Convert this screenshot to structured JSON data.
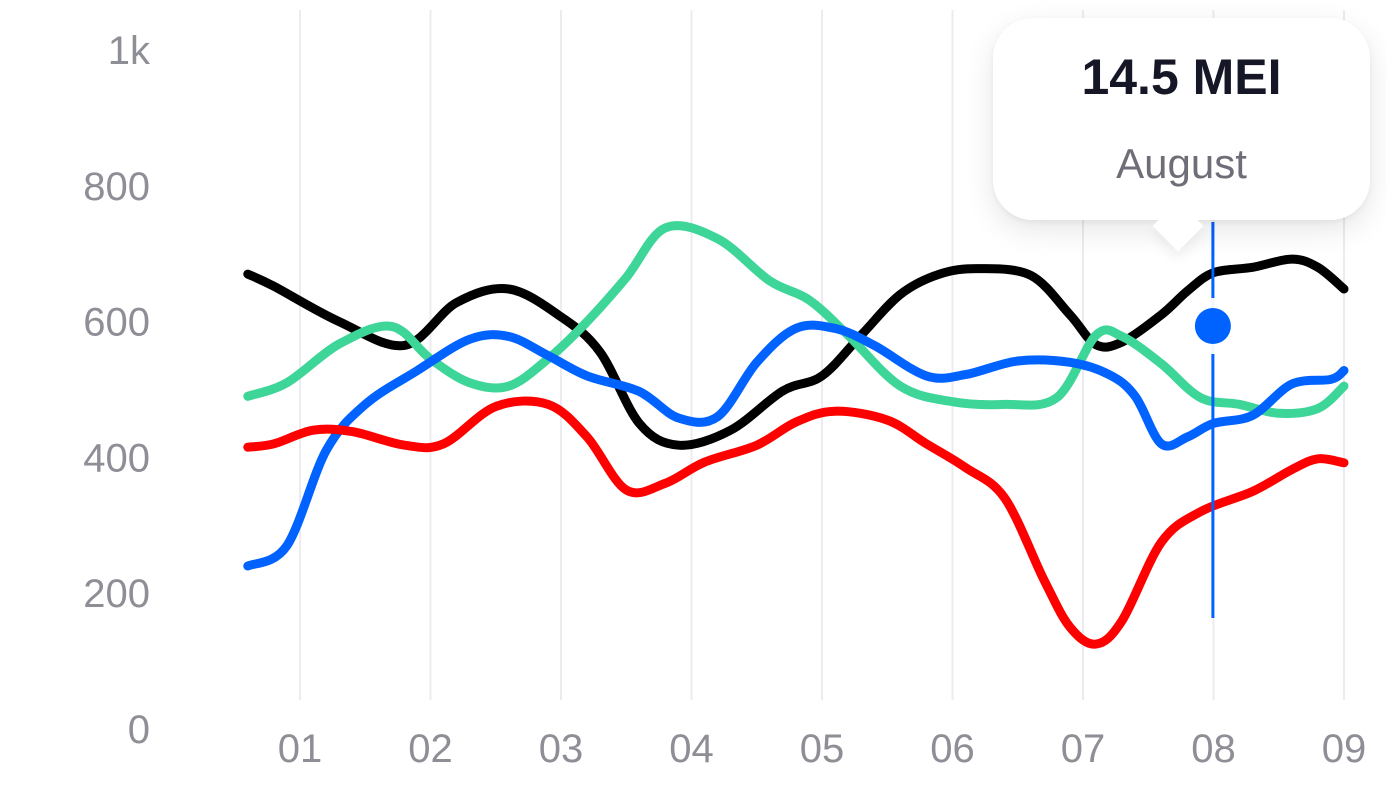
{
  "chart_data": {
    "type": "line",
    "x": [
      "01",
      "02",
      "03",
      "04",
      "05",
      "06",
      "07",
      "08",
      "09"
    ],
    "yticks": [
      "1k",
      "800",
      "600",
      "400",
      "200",
      "0"
    ],
    "ylim": [
      0,
      1000
    ],
    "grid": "vertical",
    "series": [
      {
        "color": "#000000",
        "points": [
          [
            0.6,
            670
          ],
          [
            0.8,
            652
          ],
          [
            1.3,
            600
          ],
          [
            1.8,
            565
          ],
          [
            2.2,
            628
          ],
          [
            2.6,
            648
          ],
          [
            3.0,
            607
          ],
          [
            3.3,
            555
          ],
          [
            3.6,
            450
          ],
          [
            3.9,
            418
          ],
          [
            4.3,
            440
          ],
          [
            4.7,
            498
          ],
          [
            5.0,
            520
          ],
          [
            5.3,
            580
          ],
          [
            5.6,
            640
          ],
          [
            5.9,
            670
          ],
          [
            6.2,
            678
          ],
          [
            6.6,
            668
          ],
          [
            6.9,
            610
          ],
          [
            7.1,
            566
          ],
          [
            7.3,
            570
          ],
          [
            7.6,
            610
          ],
          [
            7.8,
            645
          ],
          [
            8.0,
            672
          ],
          [
            8.3,
            680
          ],
          [
            8.6,
            692
          ],
          [
            8.8,
            680
          ],
          [
            9.0,
            648
          ]
        ]
      },
      {
        "color": "#3dd598",
        "points": [
          [
            0.6,
            490
          ],
          [
            0.9,
            510
          ],
          [
            1.3,
            567
          ],
          [
            1.7,
            593
          ],
          [
            2.0,
            545
          ],
          [
            2.3,
            510
          ],
          [
            2.6,
            505
          ],
          [
            2.9,
            545
          ],
          [
            3.2,
            600
          ],
          [
            3.5,
            665
          ],
          [
            3.8,
            738
          ],
          [
            4.2,
            722
          ],
          [
            4.6,
            660
          ],
          [
            4.9,
            632
          ],
          [
            5.2,
            580
          ],
          [
            5.6,
            505
          ],
          [
            6.0,
            482
          ],
          [
            6.4,
            478
          ],
          [
            6.8,
            488
          ],
          [
            7.1,
            580
          ],
          [
            7.3,
            578
          ],
          [
            7.6,
            538
          ],
          [
            7.9,
            488
          ],
          [
            8.2,
            478
          ],
          [
            8.5,
            465
          ],
          [
            8.8,
            472
          ],
          [
            9.0,
            505
          ]
        ]
      },
      {
        "color": "#0062ff",
        "points": [
          [
            0.6,
            240
          ],
          [
            0.9,
            270
          ],
          [
            1.2,
            410
          ],
          [
            1.5,
            478
          ],
          [
            1.9,
            528
          ],
          [
            2.3,
            574
          ],
          [
            2.6,
            578
          ],
          [
            2.9,
            550
          ],
          [
            3.2,
            520
          ],
          [
            3.6,
            497
          ],
          [
            3.9,
            458
          ],
          [
            4.2,
            460
          ],
          [
            4.5,
            540
          ],
          [
            4.8,
            590
          ],
          [
            5.1,
            590
          ],
          [
            5.4,
            565
          ],
          [
            5.8,
            520
          ],
          [
            6.1,
            522
          ],
          [
            6.5,
            542
          ],
          [
            6.9,
            540
          ],
          [
            7.2,
            522
          ],
          [
            7.4,
            490
          ],
          [
            7.6,
            420
          ],
          [
            7.8,
            430
          ],
          [
            8.0,
            450
          ],
          [
            8.3,
            462
          ],
          [
            8.6,
            508
          ],
          [
            8.9,
            515
          ],
          [
            9.0,
            528
          ]
        ]
      },
      {
        "color": "#ff0000",
        "points": [
          [
            0.6,
            415
          ],
          [
            0.8,
            420
          ],
          [
            1.1,
            440
          ],
          [
            1.4,
            438
          ],
          [
            1.8,
            418
          ],
          [
            2.1,
            420
          ],
          [
            2.5,
            475
          ],
          [
            2.9,
            478
          ],
          [
            3.2,
            430
          ],
          [
            3.5,
            352
          ],
          [
            3.8,
            362
          ],
          [
            4.1,
            393
          ],
          [
            4.5,
            418
          ],
          [
            4.8,
            452
          ],
          [
            5.1,
            468
          ],
          [
            5.5,
            455
          ],
          [
            5.8,
            420
          ],
          [
            6.1,
            385
          ],
          [
            6.4,
            340
          ],
          [
            6.7,
            220
          ],
          [
            6.9,
            150
          ],
          [
            7.1,
            125
          ],
          [
            7.3,
            160
          ],
          [
            7.6,
            275
          ],
          [
            7.9,
            320
          ],
          [
            8.3,
            350
          ],
          [
            8.6,
            382
          ],
          [
            8.8,
            398
          ],
          [
            9.0,
            392
          ]
        ]
      }
    ],
    "highlight": {
      "x": 7.98,
      "series_index": 2,
      "color": "#0062ff"
    }
  },
  "tooltip": {
    "value": "14.5 MEI",
    "label": "August"
  }
}
